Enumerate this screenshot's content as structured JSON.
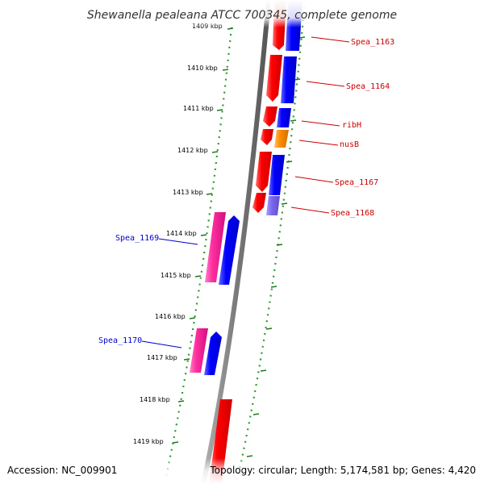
{
  "title": "Shewanella pealeana ATCC 700345, complete genome",
  "footer": {
    "accession": "Accession: NC_009901",
    "topology": "Topology: circular; Length: 5,174,581 bp; Genes: 4,420"
  },
  "ticks": [
    "1409 kbp",
    "1410 kbp",
    "1411 kbp",
    "1412 kbp",
    "1413 kbp",
    "1414 kbp",
    "1415 kbp",
    "1416 kbp",
    "1417 kbp",
    "1418 kbp",
    "1419 kbp"
  ],
  "genes": [
    {
      "label": "Spea_1163",
      "color": "#cc0000"
    },
    {
      "label": "Spea_1164",
      "color": "#cc0000"
    },
    {
      "label": "ribH",
      "color": "#cc0000"
    },
    {
      "label": "nusB",
      "color": "#cc0000"
    },
    {
      "label": "Spea_1167",
      "color": "#cc0000"
    },
    {
      "label": "Spea_1168",
      "color": "#cc0000"
    },
    {
      "label": "Spea_1169",
      "color": "#0000cc"
    },
    {
      "label": "Spea_1170",
      "color": "#0000cc"
    }
  ],
  "colors": {
    "red": "#ff0000",
    "blue": "#0000ff",
    "pink": "#ff2fa0",
    "orange": "#ff8c00",
    "purple": "#7b68ee",
    "backbone": "#7a7a7a",
    "dots": "#2f9a2f",
    "ticks": "#1f7a1f"
  }
}
